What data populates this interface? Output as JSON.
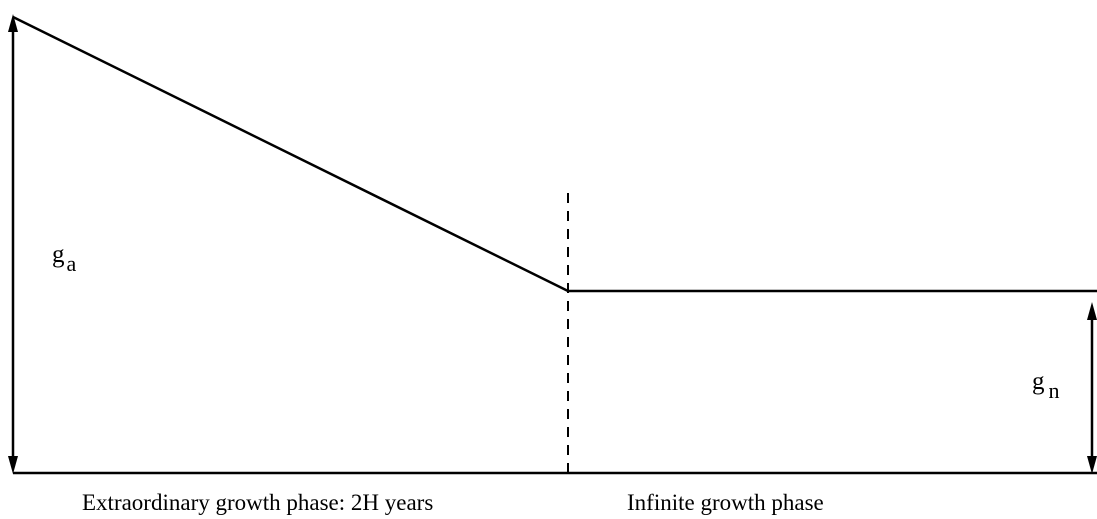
{
  "growth_labels": [
    {
      "symbol": "g",
      "subscript": "a"
    },
    {
      "symbol": "g",
      "subscript": "n"
    }
  ],
  "phases": [
    "Extraordinary growth phase: 2H years",
    "Infinite growth phase"
  ]
}
